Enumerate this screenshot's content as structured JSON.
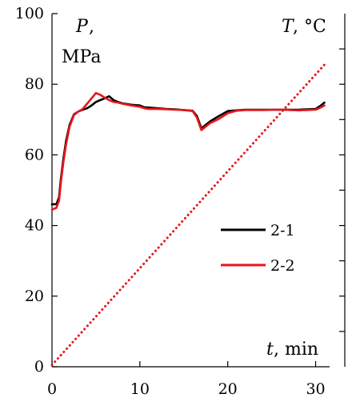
{
  "chart_data": {
    "type": "line",
    "xlim": [
      0,
      32
    ],
    "ylim": [
      0,
      100
    ],
    "xticks": [
      0,
      10,
      20,
      30
    ],
    "yticks": [
      0,
      20,
      40,
      60,
      80,
      100
    ],
    "xlabel": {
      "var": "t",
      "rest": ", min"
    },
    "ylabel": {
      "var": "P",
      "rest": ",",
      "unit": "MPa"
    },
    "y2label": {
      "var": "T",
      "rest": ", °C"
    },
    "grid": false,
    "legend_position": "center-right",
    "series": [
      {
        "name": "2-1",
        "color": "#000000",
        "style": "solid",
        "x": [
          0,
          0.5,
          0.8,
          1.0,
          1.3,
          1.6,
          2.0,
          2.5,
          3.0,
          3.5,
          4.0,
          4.5,
          5.0,
          5.5,
          6.0,
          6.5,
          7.0,
          7.5,
          8.0,
          9.0,
          10.0,
          10.5,
          11.0,
          12.0,
          13.0,
          14.0,
          15.0,
          16.0,
          16.5,
          17.0,
          17.5,
          18.0,
          19.0,
          20.0,
          21.0,
          22.0,
          24.0,
          26.0,
          28.0,
          29.0,
          30.0,
          30.5,
          31.0
        ],
        "values": [
          46,
          46,
          48,
          53,
          59,
          64,
          68.5,
          71.5,
          72.3,
          72.8,
          73.2,
          74.0,
          75.0,
          75.5,
          76.0,
          76.6,
          75.5,
          75.0,
          74.6,
          74.2,
          74.0,
          73.5,
          73.4,
          73.2,
          73.0,
          72.9,
          72.7,
          72.5,
          71.0,
          67.5,
          68.5,
          69.5,
          71.0,
          72.4,
          72.6,
          72.8,
          72.8,
          72.8,
          72.8,
          72.9,
          73.0,
          73.8,
          74.8
        ]
      },
      {
        "name": "2-2",
        "color": "#e8161b",
        "style": "solid",
        "x": [
          0,
          0.5,
          0.8,
          1.0,
          1.3,
          1.6,
          2.0,
          2.5,
          3.0,
          3.5,
          4.0,
          4.5,
          5.0,
          5.5,
          6.0,
          6.5,
          7.0,
          7.5,
          8.0,
          9.0,
          10.0,
          10.5,
          11.0,
          12.0,
          13.0,
          14.0,
          15.0,
          16.0,
          16.5,
          17.0,
          17.5,
          18.0,
          19.0,
          20.0,
          21.0,
          22.0,
          24.0,
          26.0,
          28.0,
          29.0,
          30.0,
          30.5,
          31.0
        ],
        "values": [
          44.5,
          45,
          47,
          52,
          58,
          63,
          68,
          71.3,
          72.3,
          73.0,
          74.5,
          76.0,
          77.5,
          77.0,
          76.2,
          75.5,
          75.0,
          74.8,
          74.5,
          74.0,
          73.6,
          73.2,
          73.0,
          73.0,
          72.9,
          72.8,
          72.7,
          72.4,
          70.5,
          67.0,
          68.0,
          69.0,
          70.2,
          71.8,
          72.5,
          72.7,
          72.7,
          72.8,
          72.6,
          72.7,
          72.8,
          73.3,
          74.0
        ]
      },
      {
        "name": "",
        "color": "#e8161b",
        "style": "dotted",
        "x": [
          0,
          31
        ],
        "values": [
          0.5,
          85.5
        ]
      }
    ]
  }
}
